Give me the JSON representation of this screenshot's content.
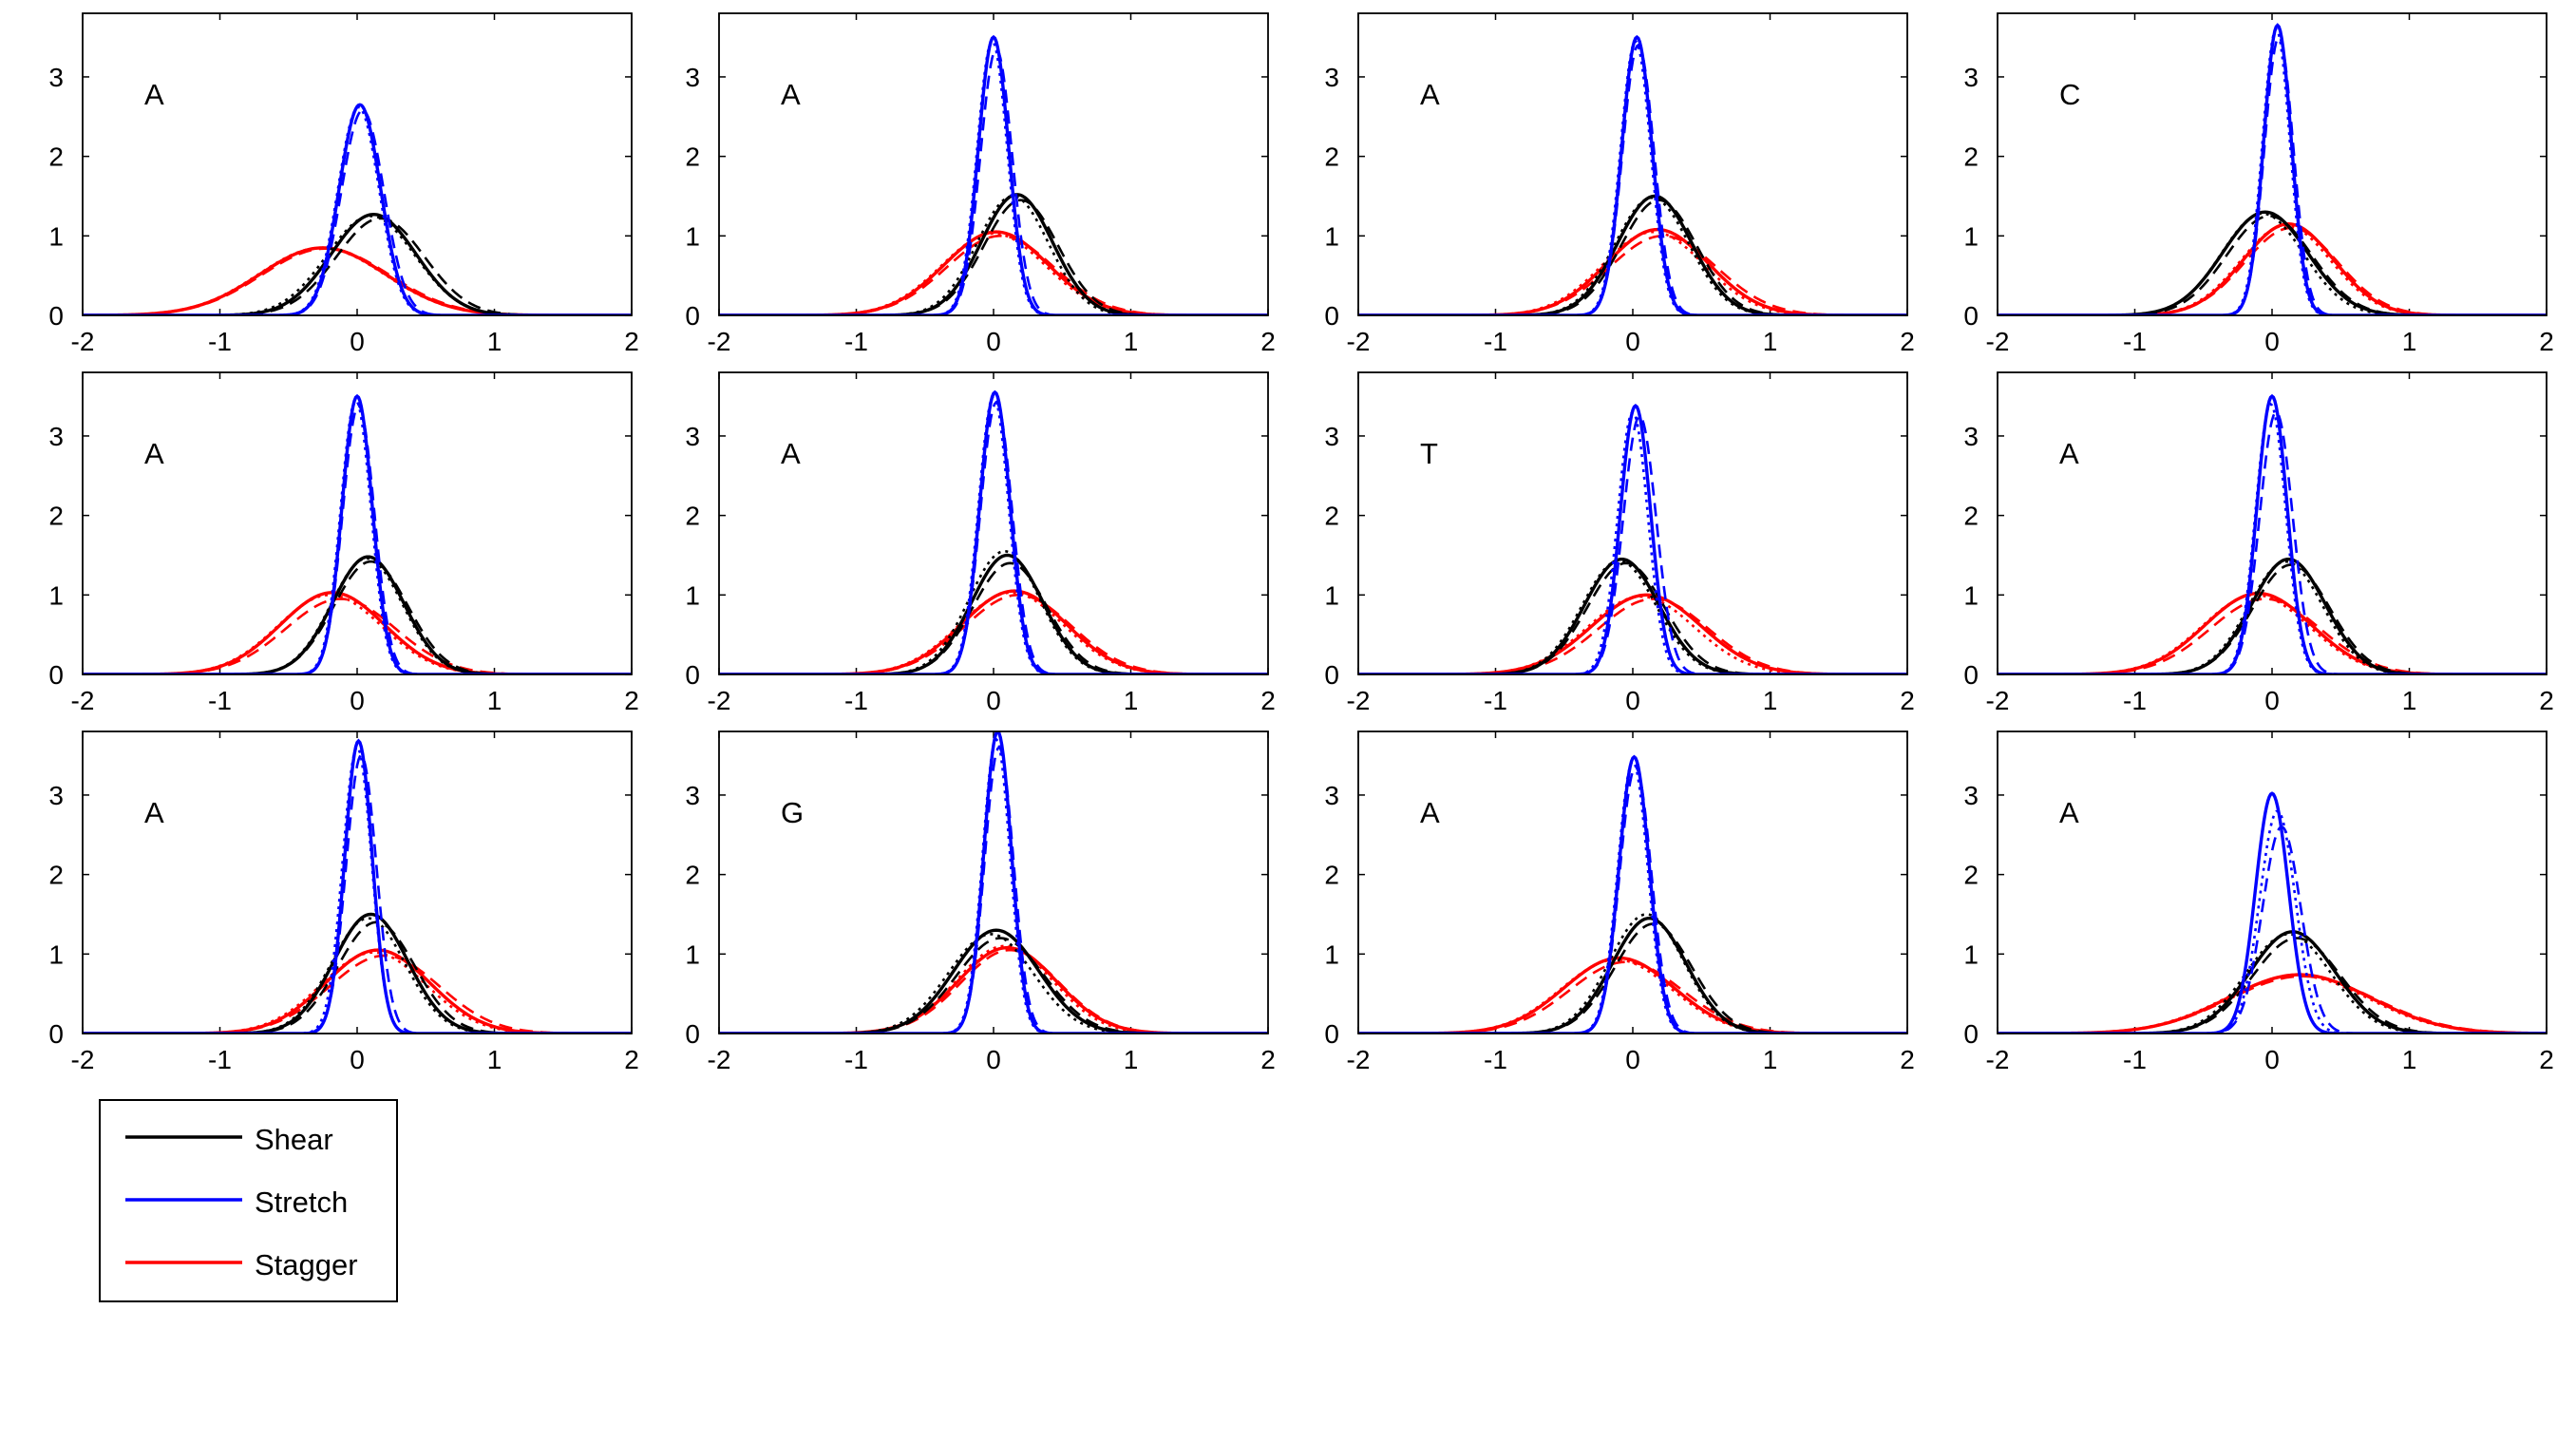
{
  "figure": {
    "x_ticks": [
      "-2",
      "-1",
      "0",
      "1",
      "2"
    ],
    "y_ticks": [
      "0",
      "1",
      "2",
      "3"
    ],
    "xlim": [
      -2,
      2
    ],
    "ylim": [
      0,
      3.8
    ],
    "series_colors": {
      "Shear": "#000000",
      "Stretch": "#0000ff",
      "Stagger": "#ff0000"
    },
    "legend": {
      "placement": "below-left",
      "items": [
        {
          "label": "Shear",
          "color": "#000000"
        },
        {
          "label": "Stretch",
          "color": "#0000ff"
        },
        {
          "label": "Stagger",
          "color": "#ff0000"
        }
      ]
    }
  },
  "chart_data": [
    {
      "type": "line",
      "annotation": "A",
      "xlim": [
        -2,
        2
      ],
      "ylim": [
        0,
        3.8
      ],
      "series": [
        {
          "name": "Shear",
          "color": "#000000",
          "peak": 1.27,
          "mean": 0.12,
          "sd": 0.31,
          "variants": [
            {
              "peak": 1.22,
              "mean": 0.17,
              "sd": 0.32
            },
            {
              "peak": 1.25,
              "mean": 0.1,
              "sd": 0.32
            }
          ]
        },
        {
          "name": "Stretch",
          "color": "#0000ff",
          "peak": 2.65,
          "mean": 0.02,
          "sd": 0.15,
          "variants": [
            {
              "peak": 2.58,
              "mean": 0.04,
              "sd": 0.155
            },
            {
              "peak": 2.62,
              "mean": 0.01,
              "sd": 0.15
            }
          ]
        },
        {
          "name": "Stagger",
          "color": "#ff0000",
          "peak": 0.85,
          "mean": -0.25,
          "sd": 0.46,
          "variants": [
            {
              "peak": 0.84,
              "mean": -0.23,
              "sd": 0.465
            },
            {
              "peak": 0.85,
              "mean": -0.26,
              "sd": 0.46
            }
          ]
        }
      ]
    },
    {
      "type": "line",
      "annotation": "A",
      "xlim": [
        -2,
        2
      ],
      "ylim": [
        0,
        3.8
      ],
      "series": [
        {
          "name": "Shear",
          "color": "#000000",
          "peak": 1.52,
          "mean": 0.17,
          "sd": 0.26,
          "variants": [
            {
              "peak": 1.45,
              "mean": 0.2,
              "sd": 0.27
            },
            {
              "peak": 1.5,
              "mean": 0.14,
              "sd": 0.26
            }
          ]
        },
        {
          "name": "Stretch",
          "color": "#0000ff",
          "peak": 3.5,
          "mean": 0.0,
          "sd": 0.11,
          "variants": [
            {
              "peak": 3.35,
              "mean": 0.02,
              "sd": 0.115
            },
            {
              "peak": 3.45,
              "mean": -0.01,
              "sd": 0.11
            }
          ]
        },
        {
          "name": "Stagger",
          "color": "#ff0000",
          "peak": 1.05,
          "mean": 0.02,
          "sd": 0.38,
          "variants": [
            {
              "peak": 1.0,
              "mean": 0.05,
              "sd": 0.39
            },
            {
              "peak": 1.03,
              "mean": 0.0,
              "sd": 0.38
            }
          ]
        }
      ]
    },
    {
      "type": "line",
      "annotation": "A",
      "xlim": [
        -2,
        2
      ],
      "ylim": [
        0,
        3.8
      ],
      "series": [
        {
          "name": "Shear",
          "color": "#000000",
          "peak": 1.5,
          "mean": 0.16,
          "sd": 0.27,
          "variants": [
            {
              "peak": 1.45,
              "mean": 0.19,
              "sd": 0.275
            },
            {
              "peak": 1.48,
              "mean": 0.14,
              "sd": 0.27
            }
          ]
        },
        {
          "name": "Stretch",
          "color": "#0000ff",
          "peak": 3.5,
          "mean": 0.03,
          "sd": 0.11,
          "variants": [
            {
              "peak": 3.4,
              "mean": 0.04,
              "sd": 0.115
            },
            {
              "peak": 3.45,
              "mean": 0.02,
              "sd": 0.11
            }
          ]
        },
        {
          "name": "Stagger",
          "color": "#ff0000",
          "peak": 1.08,
          "mean": 0.18,
          "sd": 0.37,
          "variants": [
            {
              "peak": 1.0,
              "mean": 0.22,
              "sd": 0.39
            },
            {
              "peak": 1.05,
              "mean": 0.15,
              "sd": 0.37
            }
          ]
        }
      ]
    },
    {
      "type": "line",
      "annotation": "C",
      "xlim": [
        -2,
        2
      ],
      "ylim": [
        0,
        3.8
      ],
      "series": [
        {
          "name": "Shear",
          "color": "#000000",
          "peak": 1.3,
          "mean": -0.05,
          "sd": 0.31,
          "variants": [
            {
              "peak": 1.25,
              "mean": -0.02,
              "sd": 0.31
            },
            {
              "peak": 1.28,
              "mean": -0.07,
              "sd": 0.3
            }
          ]
        },
        {
          "name": "Stretch",
          "color": "#0000ff",
          "peak": 3.65,
          "mean": 0.04,
          "sd": 0.1,
          "variants": [
            {
              "peak": 3.5,
              "mean": 0.05,
              "sd": 0.105
            },
            {
              "peak": 3.6,
              "mean": 0.03,
              "sd": 0.1
            }
          ]
        },
        {
          "name": "Stagger",
          "color": "#ff0000",
          "peak": 1.15,
          "mean": 0.12,
          "sd": 0.33,
          "variants": [
            {
              "peak": 1.1,
              "mean": 0.14,
              "sd": 0.34
            },
            {
              "peak": 1.13,
              "mean": 0.1,
              "sd": 0.33
            }
          ]
        }
      ]
    },
    {
      "type": "line",
      "annotation": "A",
      "xlim": [
        -2,
        2
      ],
      "ylim": [
        0,
        3.8
      ],
      "series": [
        {
          "name": "Shear",
          "color": "#000000",
          "peak": 1.48,
          "mean": 0.08,
          "sd": 0.26,
          "variants": [
            {
              "peak": 1.42,
              "mean": 0.1,
              "sd": 0.27
            },
            {
              "peak": 1.46,
              "mean": 0.07,
              "sd": 0.26
            }
          ]
        },
        {
          "name": "Stretch",
          "color": "#0000ff",
          "peak": 3.5,
          "mean": 0.0,
          "sd": 0.11,
          "variants": [
            {
              "peak": 3.38,
              "mean": 0.01,
              "sd": 0.115
            },
            {
              "peak": 3.45,
              "mean": -0.01,
              "sd": 0.11
            }
          ]
        },
        {
          "name": "Stagger",
          "color": "#ff0000",
          "peak": 1.03,
          "mean": -0.18,
          "sd": 0.38,
          "variants": [
            {
              "peak": 0.95,
              "mean": -0.12,
              "sd": 0.4
            },
            {
              "peak": 1.0,
              "mean": -0.2,
              "sd": 0.38
            }
          ]
        }
      ]
    },
    {
      "type": "line",
      "annotation": "A",
      "xlim": [
        -2,
        2
      ],
      "ylim": [
        0,
        3.8
      ],
      "series": [
        {
          "name": "Shear",
          "color": "#000000",
          "peak": 1.5,
          "mean": 0.1,
          "sd": 0.26,
          "variants": [
            {
              "peak": 1.4,
              "mean": 0.12,
              "sd": 0.27
            },
            {
              "peak": 1.55,
              "mean": 0.08,
              "sd": 0.26
            }
          ]
        },
        {
          "name": "Stretch",
          "color": "#0000ff",
          "peak": 3.55,
          "mean": 0.01,
          "sd": 0.11,
          "variants": [
            {
              "peak": 3.42,
              "mean": 0.02,
              "sd": 0.115
            },
            {
              "peak": 3.5,
              "mean": 0.0,
              "sd": 0.11
            }
          ]
        },
        {
          "name": "Stagger",
          "color": "#ff0000",
          "peak": 1.05,
          "mean": 0.15,
          "sd": 0.38,
          "variants": [
            {
              "peak": 1.0,
              "mean": 0.18,
              "sd": 0.39
            },
            {
              "peak": 1.03,
              "mean": 0.13,
              "sd": 0.38
            }
          ]
        }
      ]
    },
    {
      "type": "line",
      "annotation": "T",
      "xlim": [
        -2,
        2
      ],
      "ylim": [
        0,
        3.8
      ],
      "series": [
        {
          "name": "Shear",
          "color": "#000000",
          "peak": 1.45,
          "mean": -0.08,
          "sd": 0.27,
          "variants": [
            {
              "peak": 1.4,
              "mean": -0.05,
              "sd": 0.28
            },
            {
              "peak": 1.43,
              "mean": -0.1,
              "sd": 0.27
            }
          ]
        },
        {
          "name": "Stretch",
          "color": "#0000ff",
          "peak": 3.38,
          "mean": 0.02,
          "sd": 0.11,
          "variants": [
            {
              "peak": 3.25,
              "mean": 0.05,
              "sd": 0.12
            },
            {
              "peak": 3.3,
              "mean": 0.0,
              "sd": 0.11
            }
          ]
        },
        {
          "name": "Stagger",
          "color": "#ff0000",
          "peak": 1.0,
          "mean": 0.1,
          "sd": 0.4,
          "variants": [
            {
              "peak": 0.95,
              "mean": 0.15,
              "sd": 0.4
            },
            {
              "peak": 0.98,
              "mean": 0.06,
              "sd": 0.39
            }
          ]
        }
      ]
    },
    {
      "type": "line",
      "annotation": "A",
      "xlim": [
        -2,
        2
      ],
      "ylim": [
        0,
        3.8
      ],
      "series": [
        {
          "name": "Shear",
          "color": "#000000",
          "peak": 1.45,
          "mean": 0.12,
          "sd": 0.27,
          "variants": [
            {
              "peak": 1.38,
              "mean": 0.14,
              "sd": 0.28
            },
            {
              "peak": 1.42,
              "mean": 0.1,
              "sd": 0.27
            }
          ]
        },
        {
          "name": "Stretch",
          "color": "#0000ff",
          "peak": 3.5,
          "mean": 0.0,
          "sd": 0.11,
          "variants": [
            {
              "peak": 3.3,
              "mean": 0.03,
              "sd": 0.12
            },
            {
              "peak": 3.4,
              "mean": -0.01,
              "sd": 0.11
            }
          ]
        },
        {
          "name": "Stagger",
          "color": "#ff0000",
          "peak": 1.02,
          "mean": -0.1,
          "sd": 0.39,
          "variants": [
            {
              "peak": 0.95,
              "mean": -0.05,
              "sd": 0.4
            },
            {
              "peak": 1.0,
              "mean": -0.12,
              "sd": 0.39
            }
          ]
        }
      ]
    },
    {
      "type": "line",
      "annotation": "A",
      "xlim": [
        -2,
        2
      ],
      "ylim": [
        0,
        3.8
      ],
      "series": [
        {
          "name": "Shear",
          "color": "#000000",
          "peak": 1.5,
          "mean": 0.1,
          "sd": 0.27,
          "variants": [
            {
              "peak": 1.4,
              "mean": 0.14,
              "sd": 0.28
            },
            {
              "peak": 1.45,
              "mean": 0.08,
              "sd": 0.27
            }
          ]
        },
        {
          "name": "Stretch",
          "color": "#0000ff",
          "peak": 3.68,
          "mean": 0.01,
          "sd": 0.1,
          "variants": [
            {
              "peak": 3.5,
              "mean": 0.03,
              "sd": 0.11
            },
            {
              "peak": 3.6,
              "mean": 0.0,
              "sd": 0.105
            }
          ]
        },
        {
          "name": "Stagger",
          "color": "#ff0000",
          "peak": 1.05,
          "mean": 0.15,
          "sd": 0.38,
          "variants": [
            {
              "peak": 0.98,
              "mean": 0.2,
              "sd": 0.4
            },
            {
              "peak": 1.02,
              "mean": 0.12,
              "sd": 0.38
            }
          ]
        }
      ]
    },
    {
      "type": "line",
      "annotation": "G",
      "xlim": [
        -2,
        2
      ],
      "ylim": [
        0,
        3.8
      ],
      "series": [
        {
          "name": "Shear",
          "color": "#000000",
          "peak": 1.3,
          "mean": 0.02,
          "sd": 0.31,
          "variants": [
            {
              "peak": 1.2,
              "mean": 0.05,
              "sd": 0.32
            },
            {
              "peak": 1.25,
              "mean": -0.02,
              "sd": 0.31
            }
          ]
        },
        {
          "name": "Stretch",
          "color": "#0000ff",
          "peak": 3.8,
          "mean": 0.03,
          "sd": 0.1,
          "variants": [
            {
              "peak": 3.6,
              "mean": 0.04,
              "sd": 0.105
            },
            {
              "peak": 3.7,
              "mean": 0.02,
              "sd": 0.1
            }
          ]
        },
        {
          "name": "Stagger",
          "color": "#ff0000",
          "peak": 1.08,
          "mean": 0.1,
          "sd": 0.36,
          "variants": [
            {
              "peak": 1.05,
              "mean": 0.12,
              "sd": 0.36
            },
            {
              "peak": 1.1,
              "mean": 0.08,
              "sd": 0.35
            }
          ]
        }
      ]
    },
    {
      "type": "line",
      "annotation": "A",
      "xlim": [
        -2,
        2
      ],
      "ylim": [
        0,
        3.8
      ],
      "series": [
        {
          "name": "Shear",
          "color": "#000000",
          "peak": 1.45,
          "mean": 0.12,
          "sd": 0.27,
          "variants": [
            {
              "peak": 1.38,
              "mean": 0.15,
              "sd": 0.28
            },
            {
              "peak": 1.5,
              "mean": 0.1,
              "sd": 0.27
            }
          ]
        },
        {
          "name": "Stretch",
          "color": "#0000ff",
          "peak": 3.48,
          "mean": 0.01,
          "sd": 0.11,
          "variants": [
            {
              "peak": 3.35,
              "mean": 0.02,
              "sd": 0.115
            },
            {
              "peak": 3.42,
              "mean": 0.0,
              "sd": 0.11
            }
          ]
        },
        {
          "name": "Stagger",
          "color": "#ff0000",
          "peak": 0.95,
          "mean": -0.1,
          "sd": 0.4,
          "variants": [
            {
              "peak": 0.9,
              "mean": -0.05,
              "sd": 0.41
            },
            {
              "peak": 0.93,
              "mean": -0.12,
              "sd": 0.4
            }
          ]
        }
      ]
    },
    {
      "type": "line",
      "annotation": "A",
      "xlim": [
        -2,
        2
      ],
      "ylim": [
        0,
        3.8
      ],
      "series": [
        {
          "name": "Shear",
          "color": "#000000",
          "peak": 1.28,
          "mean": 0.15,
          "sd": 0.31,
          "variants": [
            {
              "peak": 1.2,
              "mean": 0.18,
              "sd": 0.32
            },
            {
              "peak": 1.25,
              "mean": 0.12,
              "sd": 0.31
            }
          ]
        },
        {
          "name": "Stretch",
          "color": "#0000ff",
          "peak": 3.02,
          "mean": 0.0,
          "sd": 0.12,
          "variants": [
            {
              "peak": 2.6,
              "mean": 0.07,
              "sd": 0.14
            },
            {
              "peak": 2.8,
              "mean": 0.04,
              "sd": 0.13
            }
          ]
        },
        {
          "name": "Stagger",
          "color": "#ff0000",
          "peak": 0.74,
          "mean": 0.2,
          "sd": 0.52,
          "variants": [
            {
              "peak": 0.72,
              "mean": 0.22,
              "sd": 0.53
            },
            {
              "peak": 0.73,
              "mean": 0.18,
              "sd": 0.52
            }
          ]
        }
      ]
    }
  ]
}
